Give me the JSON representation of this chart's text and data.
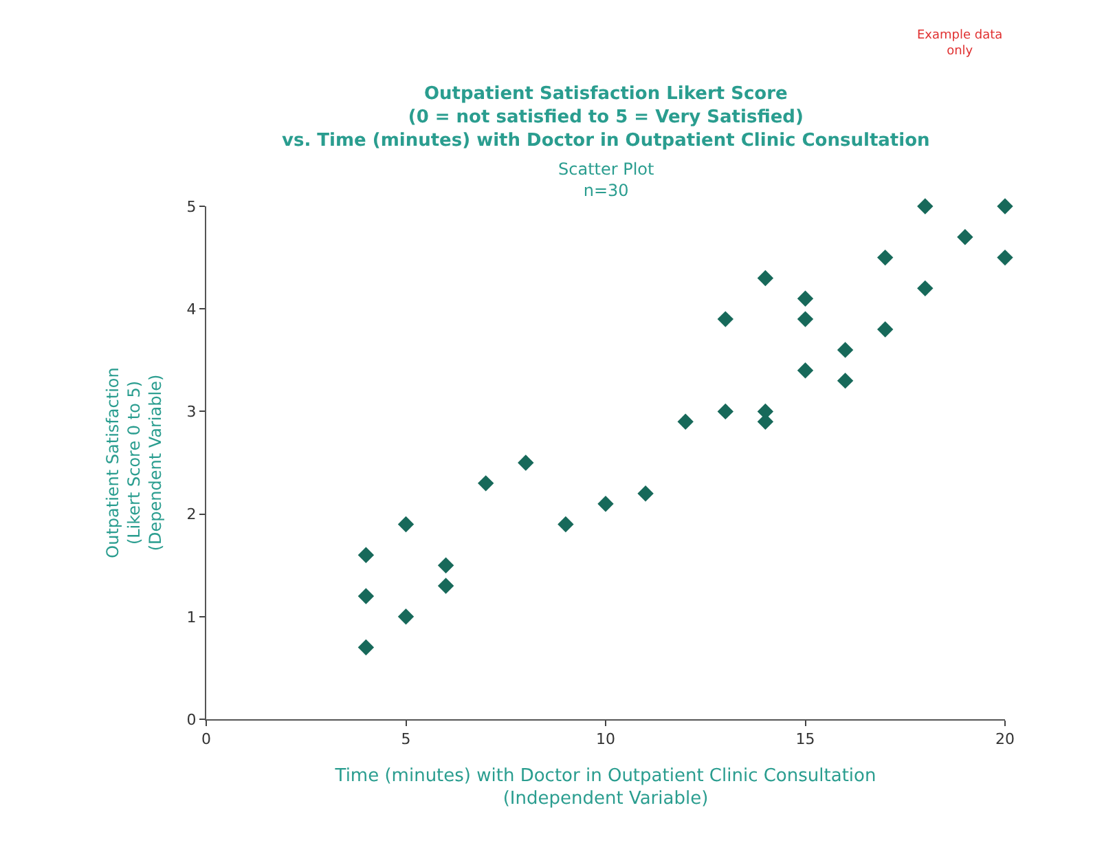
{
  "chart_data": {
    "type": "scatter",
    "title": "Outpatient Satisfaction Likert Score\n(0 = not satisfied to 5 = Very Satisfied)\nvs. Time (minutes) with Doctor in Outpatient Clinic Consultation",
    "subtitle": "Scatter Plot\nn=30",
    "xlabel": "Time (minutes) with Doctor in Outpatient Clinic Consultation\n(Independent Variable)",
    "ylabel": "Outpatient Satisfaction\n(Likert Score 0 to 5)\n(Dependent Variable)",
    "annotations": [
      "Example data\nonly"
    ],
    "x": [
      4,
      4,
      4,
      5,
      5,
      6,
      6,
      7,
      8,
      9,
      10,
      11,
      12,
      13,
      13,
      14,
      14,
      14,
      15,
      15,
      15,
      16,
      16,
      17,
      17,
      18,
      18,
      19,
      20,
      20
    ],
    "series": [
      {
        "color": "#17695a",
        "values": [
          1.6,
          1.2,
          0.7,
          1.9,
          1.0,
          1.5,
          1.3,
          2.3,
          2.5,
          1.9,
          2.1,
          2.2,
          2.9,
          3.9,
          3.0,
          4.3,
          3.0,
          2.9,
          4.1,
          3.9,
          3.4,
          3.6,
          3.3,
          4.5,
          3.8,
          5.0,
          4.2,
          4.7,
          5.0,
          4.5
        ]
      }
    ],
    "xlim": [
      0,
      20
    ],
    "xticks": [
      0,
      5,
      10,
      15,
      20
    ],
    "ylim": [
      0,
      5
    ],
    "yticks": [
      0,
      1,
      2,
      3,
      4,
      5
    ],
    "marker": "diamond"
  }
}
